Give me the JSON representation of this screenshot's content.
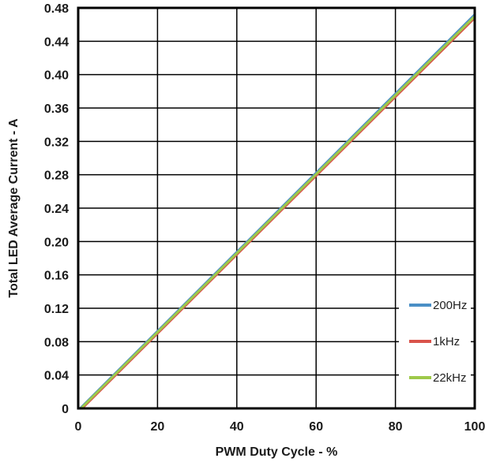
{
  "chart_data": {
    "type": "line",
    "xlabel": "PWM Duty Cycle - %",
    "ylabel": "Total LED Average Current - A",
    "xlim": [
      0,
      100
    ],
    "ylim": [
      0,
      0.48
    ],
    "xticks": [
      "0",
      "20",
      "40",
      "60",
      "80",
      "100"
    ],
    "xtick_values": [
      0,
      20,
      40,
      60,
      80,
      100
    ],
    "yticks": [
      "0",
      "0.04",
      "0.08",
      "0.12",
      "0.16",
      "0.20",
      "0.24",
      "0.28",
      "0.32",
      "0.36",
      "0.40",
      "0.44",
      "0.48"
    ],
    "ytick_values": [
      0,
      0.04,
      0.08,
      0.12,
      0.16,
      0.2,
      0.24,
      0.28,
      0.32,
      0.36,
      0.4,
      0.44,
      0.48
    ],
    "grid": true,
    "legend_position": "bottom-right",
    "series": [
      {
        "name": "200Hz",
        "color": "#4a8fc6",
        "x": [
          0.5,
          100
        ],
        "y": [
          0,
          0.472
        ]
      },
      {
        "name": "1kHz",
        "color": "#d9534b",
        "x": [
          1.0,
          100
        ],
        "y": [
          0,
          0.468
        ]
      },
      {
        "name": "22kHz",
        "color": "#9ec94a",
        "x": [
          0.7,
          100
        ],
        "y": [
          0,
          0.47
        ]
      }
    ]
  }
}
